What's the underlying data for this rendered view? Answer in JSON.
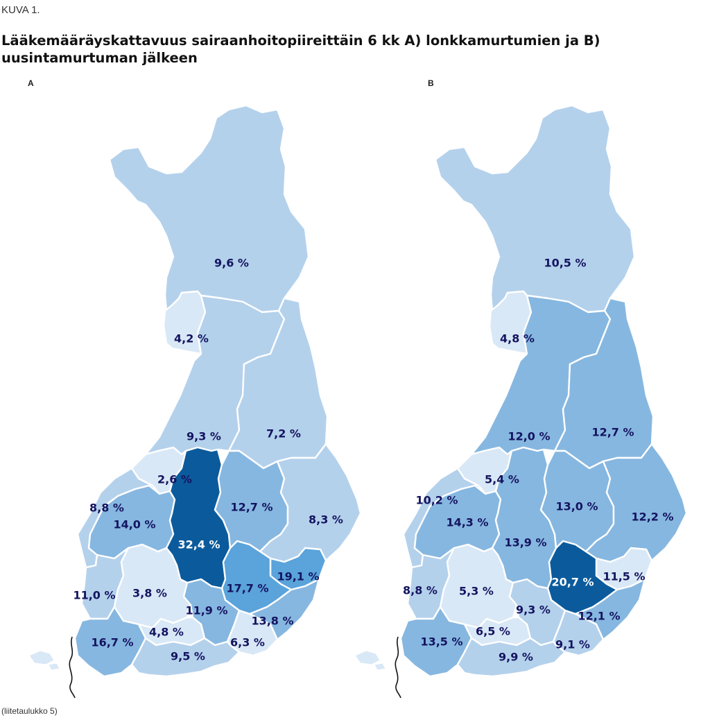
{
  "figure_label": "KUVA 1.",
  "title": "Lääkemääräyskattavuus sairaanhoitopiireittäin 6 kk A) lonkkamurtumien ja B) uusintamurtuman jälkeen",
  "source_note": "(liitetaulukko 5)",
  "colors": {
    "lightest": "#d9e8f6",
    "light": "#b4d1ec",
    "medium": "#86b7e0",
    "strong": "#5aa3db",
    "darkest": "#0b5b9c",
    "text_dark": "#141460",
    "text_light": "#ffffff",
    "border": "#ffffff"
  },
  "panels": [
    {
      "id": "A",
      "label": "A",
      "regions": [
        {
          "key": "lappi",
          "value": "9,6 %",
          "shade": "light"
        },
        {
          "key": "lansi-pohja",
          "value": "4,2 %",
          "shade": "lightest"
        },
        {
          "key": "pohjois-pohjanmaa",
          "value": "9,3 %",
          "shade": "light"
        },
        {
          "key": "kainuu",
          "value": "7,2 %",
          "shade": "light"
        },
        {
          "key": "keski-pohjanmaa",
          "value": "2,6 %",
          "shade": "lightest"
        },
        {
          "key": "vaasa",
          "value": "8,8 %",
          "shade": "light"
        },
        {
          "key": "etela-pohjanmaa",
          "value": "14,0 %",
          "shade": "medium"
        },
        {
          "key": "keski-suomi",
          "value": "32,4 %",
          "shade": "darkest"
        },
        {
          "key": "pohjois-savo",
          "value": "12,7 %",
          "shade": "medium"
        },
        {
          "key": "pohjois-karjala",
          "value": "8,3 %",
          "shade": "light"
        },
        {
          "key": "satakunta",
          "value": "11,0 %",
          "shade": "light"
        },
        {
          "key": "pirkanmaa",
          "value": "3,8 %",
          "shade": "lightest"
        },
        {
          "key": "ita-savo",
          "value": "19,1 %",
          "shade": "strong"
        },
        {
          "key": "etela-savo",
          "value": "17,7 %",
          "shade": "strong"
        },
        {
          "key": "paijat-hame",
          "value": "11,9 %",
          "shade": "medium"
        },
        {
          "key": "etela-karjala",
          "value": "13,8 %",
          "shade": "medium"
        },
        {
          "key": "varsinais-suomi",
          "value": "16,7 %",
          "shade": "medium"
        },
        {
          "key": "kanta-hame",
          "value": "4,8 %",
          "shade": "lightest"
        },
        {
          "key": "kymenlaakso",
          "value": "6,3 %",
          "shade": "lightest"
        },
        {
          "key": "hus",
          "value": "9,5 %",
          "shade": "light"
        }
      ]
    },
    {
      "id": "B",
      "label": "B",
      "regions": [
        {
          "key": "lappi",
          "value": "10,5 %",
          "shade": "light"
        },
        {
          "key": "lansi-pohja",
          "value": "4,8 %",
          "shade": "lightest"
        },
        {
          "key": "pohjois-pohjanmaa",
          "value": "12,0 %",
          "shade": "medium"
        },
        {
          "key": "kainuu",
          "value": "12,7 %",
          "shade": "medium"
        },
        {
          "key": "keski-pohjanmaa",
          "value": "5,4 %",
          "shade": "lightest"
        },
        {
          "key": "vaasa",
          "value": "10,2 %",
          "shade": "light"
        },
        {
          "key": "etela-pohjanmaa",
          "value": "14,3 %",
          "shade": "medium"
        },
        {
          "key": "keski-suomi",
          "value": "13,9 %",
          "shade": "medium"
        },
        {
          "key": "pohjois-savo",
          "value": "13,0 %",
          "shade": "medium"
        },
        {
          "key": "pohjois-karjala",
          "value": "12,2 %",
          "shade": "medium"
        },
        {
          "key": "satakunta",
          "value": "8,8 %",
          "shade": "light"
        },
        {
          "key": "pirkanmaa",
          "value": "5,3 %",
          "shade": "lightest"
        },
        {
          "key": "ita-savo",
          "value": "11,5 %",
          "shade": "lightest"
        },
        {
          "key": "etela-savo",
          "value": "20,7 %",
          "shade": "darkest"
        },
        {
          "key": "paijat-hame",
          "value": "9,3 %",
          "shade": "light"
        },
        {
          "key": "etela-karjala",
          "value": "12,1 %",
          "shade": "medium"
        },
        {
          "key": "varsinais-suomi",
          "value": "13,5 %",
          "shade": "medium"
        },
        {
          "key": "kanta-hame",
          "value": "6,5 %",
          "shade": "lightest"
        },
        {
          "key": "kymenlaakso",
          "value": "9,1 %",
          "shade": "light"
        },
        {
          "key": "hus",
          "value": "9,9 %",
          "shade": "light"
        }
      ]
    }
  ]
}
